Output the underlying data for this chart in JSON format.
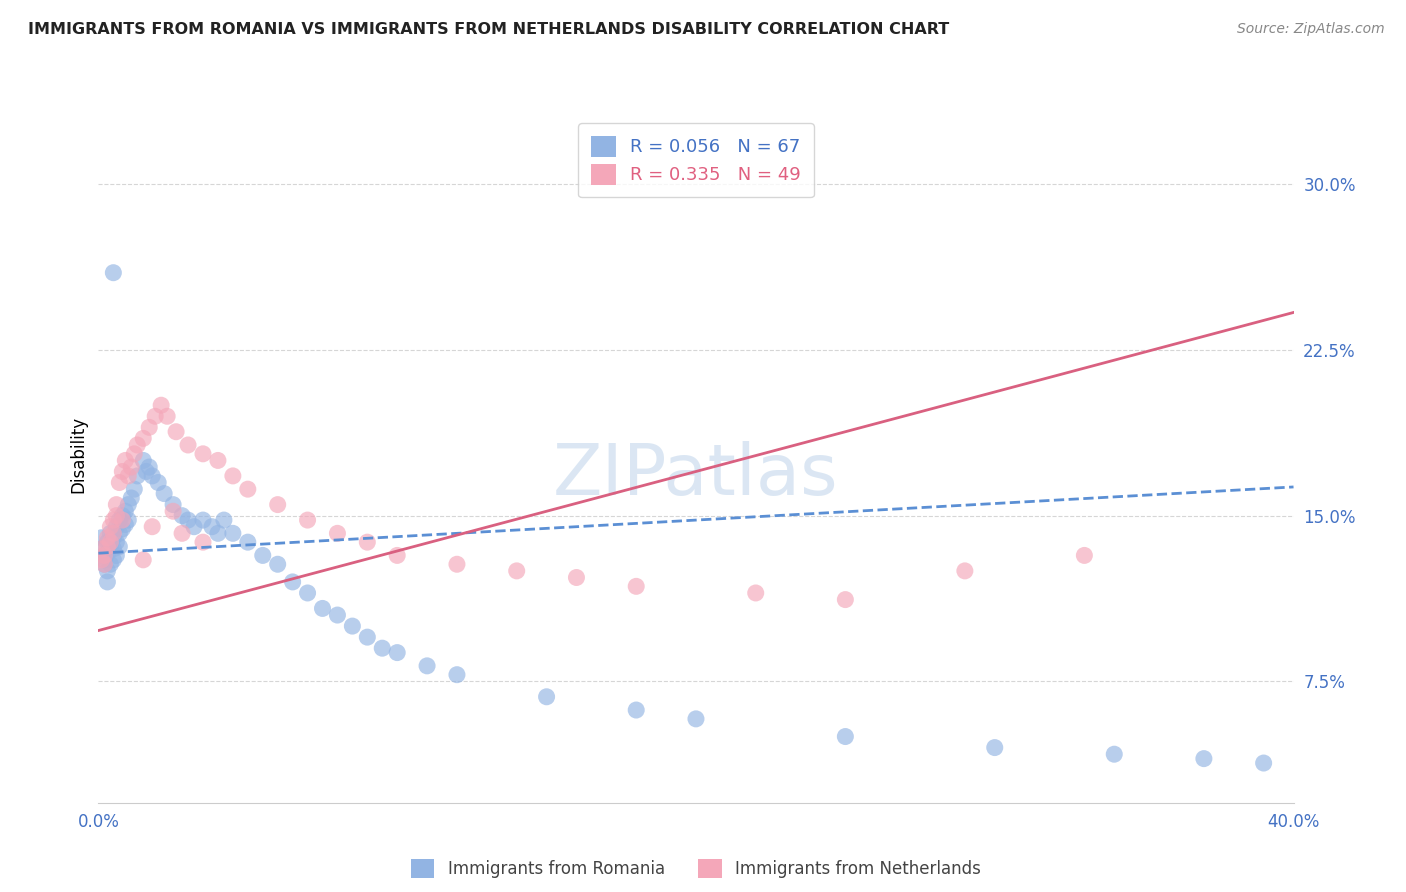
{
  "title": "IMMIGRANTS FROM ROMANIA VS IMMIGRANTS FROM NETHERLANDS DISABILITY CORRELATION CHART",
  "source": "Source: ZipAtlas.com",
  "ylabel": "Disability",
  "ytick_labels": [
    "7.5%",
    "15.0%",
    "22.5%",
    "30.0%"
  ],
  "ytick_values": [
    0.075,
    0.15,
    0.225,
    0.3
  ],
  "xlim": [
    0.0,
    0.4
  ],
  "ylim": [
    0.02,
    0.335
  ],
  "legend_label1": "Immigrants from Romania",
  "legend_label2": "Immigrants from Netherlands",
  "r1": 0.056,
  "n1": 67,
  "r2": 0.335,
  "n2": 49,
  "color1": "#92b4e3",
  "color2": "#f4a7b9",
  "color1_dark": "#4472c4",
  "color2_dark": "#e06080",
  "line1_color": "#5b8fd4",
  "line2_color": "#d96080",
  "watermark": "ZIPatlas",
  "scatter1_x": [
    0.001,
    0.001,
    0.002,
    0.002,
    0.002,
    0.003,
    0.003,
    0.003,
    0.003,
    0.004,
    0.004,
    0.004,
    0.005,
    0.005,
    0.005,
    0.006,
    0.006,
    0.006,
    0.007,
    0.007,
    0.007,
    0.008,
    0.008,
    0.009,
    0.009,
    0.01,
    0.01,
    0.011,
    0.012,
    0.013,
    0.015,
    0.016,
    0.017,
    0.018,
    0.02,
    0.022,
    0.025,
    0.028,
    0.03,
    0.032,
    0.035,
    0.038,
    0.04,
    0.042,
    0.045,
    0.05,
    0.055,
    0.06,
    0.065,
    0.07,
    0.075,
    0.08,
    0.085,
    0.09,
    0.095,
    0.1,
    0.11,
    0.12,
    0.15,
    0.18,
    0.2,
    0.25,
    0.3,
    0.34,
    0.37,
    0.39,
    0.005
  ],
  "scatter1_y": [
    0.135,
    0.14,
    0.13,
    0.132,
    0.128,
    0.138,
    0.133,
    0.125,
    0.12,
    0.142,
    0.136,
    0.128,
    0.14,
    0.135,
    0.13,
    0.145,
    0.138,
    0.132,
    0.148,
    0.142,
    0.136,
    0.15,
    0.144,
    0.152,
    0.146,
    0.155,
    0.148,
    0.158,
    0.162,
    0.168,
    0.175,
    0.17,
    0.172,
    0.168,
    0.165,
    0.16,
    0.155,
    0.15,
    0.148,
    0.145,
    0.148,
    0.145,
    0.142,
    0.148,
    0.142,
    0.138,
    0.132,
    0.128,
    0.12,
    0.115,
    0.108,
    0.105,
    0.1,
    0.095,
    0.09,
    0.088,
    0.082,
    0.078,
    0.068,
    0.062,
    0.058,
    0.05,
    0.045,
    0.042,
    0.04,
    0.038,
    0.26
  ],
  "scatter2_x": [
    0.001,
    0.001,
    0.002,
    0.002,
    0.003,
    0.003,
    0.004,
    0.004,
    0.005,
    0.005,
    0.006,
    0.006,
    0.007,
    0.008,
    0.009,
    0.01,
    0.011,
    0.012,
    0.013,
    0.015,
    0.017,
    0.019,
    0.021,
    0.023,
    0.026,
    0.03,
    0.035,
    0.04,
    0.045,
    0.05,
    0.06,
    0.07,
    0.08,
    0.09,
    0.1,
    0.12,
    0.14,
    0.16,
    0.18,
    0.22,
    0.25,
    0.29,
    0.33,
    0.035,
    0.028,
    0.018,
    0.008,
    0.025,
    0.015
  ],
  "scatter2_y": [
    0.13,
    0.135,
    0.128,
    0.132,
    0.136,
    0.14,
    0.138,
    0.145,
    0.142,
    0.148,
    0.155,
    0.15,
    0.165,
    0.17,
    0.175,
    0.168,
    0.172,
    0.178,
    0.182,
    0.185,
    0.19,
    0.195,
    0.2,
    0.195,
    0.188,
    0.182,
    0.178,
    0.175,
    0.168,
    0.162,
    0.155,
    0.148,
    0.142,
    0.138,
    0.132,
    0.128,
    0.125,
    0.122,
    0.118,
    0.115,
    0.112,
    0.125,
    0.132,
    0.138,
    0.142,
    0.145,
    0.148,
    0.152,
    0.13
  ]
}
